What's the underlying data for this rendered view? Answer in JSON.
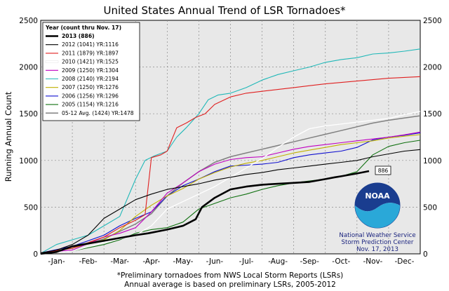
{
  "chart_data": {
    "type": "line",
    "title": "United States Annual Trend of LSR Tornadoes*",
    "ylabel": "Running Annual Count",
    "xlabel": "",
    "ylim": [
      0,
      2500
    ],
    "xlim": [
      0,
      12
    ],
    "grid": true,
    "y_ticks": [
      "0",
      "500",
      "1000",
      "1500",
      "2000",
      "2500"
    ],
    "x_ticks": [
      "-Jan-",
      "-Feb-",
      "-Mar-",
      "-Apr-",
      "-May-",
      "-Jun-",
      "-Jul-",
      "-Aug-",
      "-Sep-",
      "-Oct-",
      "-Nov-",
      "-Dec-"
    ],
    "legend_title": "Year (count thru Nov. 17)",
    "legend_position": "top-left",
    "annotation": "886",
    "series": [
      {
        "name": "2013 (886)",
        "color": "#000000",
        "width": 2.6,
        "x": [
          0,
          0.5,
          1,
          1.5,
          2,
          2.5,
          3,
          3.4,
          4,
          4.5,
          4.9,
          5.1,
          5.5,
          6,
          6.5,
          7,
          7.5,
          8,
          8.5,
          9,
          9.3,
          9.5,
          10.0,
          10.38
        ],
        "y": [
          0,
          20,
          80,
          110,
          140,
          170,
          200,
          220,
          260,
          300,
          370,
          500,
          600,
          690,
          720,
          740,
          750,
          760,
          770,
          800,
          820,
          830,
          860,
          886
        ]
      },
      {
        "name": "2012 (1041) YR:1116",
        "color": "#000000",
        "width": 1.1,
        "x": [
          0,
          0.5,
          1,
          1.5,
          2,
          2.5,
          3,
          3.5,
          4,
          4.5,
          5,
          5.5,
          6,
          6.5,
          7,
          7.5,
          8,
          8.5,
          9,
          9.5,
          10,
          10.5,
          11,
          11.5,
          12
        ],
        "y": [
          10,
          40,
          100,
          200,
          380,
          480,
          580,
          640,
          690,
          720,
          750,
          790,
          820,
          850,
          870,
          900,
          920,
          940,
          960,
          980,
          1000,
          1040,
          1070,
          1100,
          1116
        ]
      },
      {
        "name": "2011 (1879) YR:1897",
        "color": "#e02020",
        "width": 1.1,
        "x": [
          0,
          1,
          2,
          2.5,
          3,
          3.3,
          3.5,
          3.8,
          4,
          4.3,
          4.6,
          4.9,
          5.2,
          5.5,
          6,
          6.5,
          7,
          7.5,
          8,
          8.5,
          9,
          10,
          11,
          12
        ],
        "y": [
          10,
          60,
          180,
          280,
          360,
          420,
          1030,
          1060,
          1100,
          1350,
          1400,
          1460,
          1500,
          1600,
          1680,
          1720,
          1740,
          1760,
          1780,
          1800,
          1820,
          1850,
          1880,
          1897
        ]
      },
      {
        "name": "2010 (1421) YR:1525",
        "color": "#ffffff",
        "width": 1.3,
        "x": [
          0,
          1,
          2,
          3,
          3.5,
          4,
          4.5,
          5,
          5.5,
          6,
          6.5,
          7,
          7.5,
          8,
          8.5,
          9,
          9.5,
          10,
          10.5,
          11,
          11.5,
          12
        ],
        "y": [
          5,
          30,
          120,
          200,
          300,
          480,
          560,
          640,
          720,
          820,
          920,
          1020,
          1140,
          1250,
          1340,
          1370,
          1390,
          1410,
          1430,
          1450,
          1490,
          1525
        ]
      },
      {
        "name": "2009 (1250) YR:1304",
        "color": "#c000c0",
        "width": 1.1,
        "x": [
          0,
          1,
          2,
          2.5,
          3,
          3.5,
          4,
          4.5,
          5,
          5.5,
          6,
          6.5,
          7,
          7.5,
          8,
          8.5,
          9,
          9.5,
          10,
          10.5,
          11,
          11.5,
          12
        ],
        "y": [
          10,
          40,
          180,
          220,
          280,
          450,
          650,
          760,
          880,
          960,
          1010,
          1030,
          1040,
          1080,
          1120,
          1150,
          1170,
          1190,
          1210,
          1230,
          1250,
          1275,
          1304
        ]
      },
      {
        "name": "2008 (2140) YR:2194",
        "color": "#20b8b8",
        "width": 1.1,
        "x": [
          0,
          0.5,
          1,
          1.5,
          2,
          2.5,
          3,
          3.3,
          3.6,
          4,
          4.3,
          4.6,
          5,
          5.3,
          5.6,
          6,
          6.5,
          7,
          7.5,
          8,
          8.5,
          9,
          9.5,
          10,
          10.5,
          11,
          11.5,
          12
        ],
        "y": [
          5,
          100,
          150,
          200,
          300,
          400,
          800,
          1000,
          1050,
          1100,
          1250,
          1350,
          1500,
          1650,
          1700,
          1720,
          1780,
          1860,
          1920,
          1960,
          2000,
          2050,
          2080,
          2100,
          2140,
          2150,
          2170,
          2194
        ]
      },
      {
        "name": "2007 (1250) YR:1276",
        "color": "#c0b000",
        "width": 1.1,
        "x": [
          0,
          1,
          2,
          2.5,
          3,
          3.5,
          4,
          4.5,
          5,
          5.5,
          6,
          6.5,
          7,
          7.5,
          8,
          8.5,
          9,
          9.5,
          10,
          10.5,
          11,
          11.5,
          12
        ],
        "y": [
          10,
          60,
          150,
          250,
          400,
          520,
          620,
          700,
          800,
          870,
          930,
          970,
          1000,
          1040,
          1080,
          1110,
          1140,
          1170,
          1190,
          1210,
          1240,
          1260,
          1276
        ]
      },
      {
        "name": "2006 (1256) YR:1296",
        "color": "#1010d0",
        "width": 1.1,
        "x": [
          0,
          1,
          2,
          2.5,
          3,
          3.5,
          4,
          4.5,
          5,
          5.5,
          6,
          6.5,
          7,
          7.5,
          8,
          8.5,
          9,
          9.5,
          10,
          10.5,
          11,
          11.5,
          12
        ],
        "y": [
          10,
          80,
          200,
          300,
          380,
          450,
          620,
          730,
          800,
          880,
          940,
          950,
          960,
          980,
          1030,
          1060,
          1080,
          1100,
          1140,
          1220,
          1250,
          1270,
          1296
        ]
      },
      {
        "name": "2005 (1154) YR:1216",
        "color": "#107010",
        "width": 1.1,
        "x": [
          0,
          1,
          2,
          2.5,
          3,
          3.5,
          4,
          4.5,
          5,
          5.5,
          6,
          6.5,
          7,
          7.5,
          8,
          8.5,
          9,
          9.5,
          10,
          10.5,
          11,
          11.5,
          12
        ],
        "y": [
          5,
          30,
          100,
          150,
          220,
          260,
          280,
          340,
          480,
          540,
          600,
          640,
          690,
          730,
          760,
          780,
          800,
          830,
          880,
          1060,
          1150,
          1190,
          1216
        ]
      },
      {
        "name": "05-12 Avg. (1424) YR:1478",
        "color": "#808080",
        "width": 1.5,
        "x": [
          0,
          1,
          2,
          2.5,
          3,
          3.5,
          4,
          4.5,
          5,
          5.5,
          6,
          6.5,
          7,
          7.5,
          8,
          8.5,
          9,
          9.5,
          10,
          10.5,
          11,
          11.5,
          12
        ],
        "y": [
          10,
          60,
          160,
          240,
          320,
          430,
          620,
          760,
          880,
          980,
          1040,
          1080,
          1120,
          1160,
          1200,
          1240,
          1280,
          1320,
          1360,
          1400,
          1430,
          1455,
          1478
        ]
      }
    ]
  },
  "footnote_line1": "*Preliminary tornadoes from NWS Local Storm Reports (LSRs)",
  "footnote_line2": "Annual average is based on preliminary LSRs, 2005-2012",
  "logo_text": "NOAA",
  "credit_line1": "National Weather Service",
  "credit_line2": "Storm Prediction Center",
  "credit_line3": "Nov. 17, 2013"
}
